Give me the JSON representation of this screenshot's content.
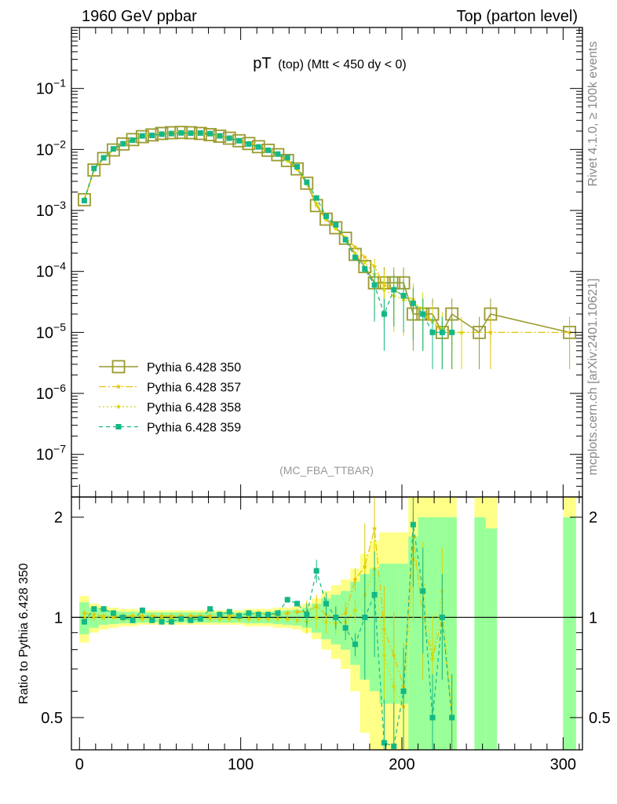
{
  "header": {
    "left": "1960 GeV ppbar",
    "right": "Top (parton level)"
  },
  "side_labels": {
    "rivet": "Rivet 4.1.0, ≥ 100k events",
    "mcplots": "mcplots.cern.ch [arXiv:2401.10621]"
  },
  "chart_data": [
    {
      "type": "line",
      "panel": "main",
      "title": "pT (top) (Mtt < 450 dy < 0)",
      "title_main": "pT",
      "title_sub": "(top) (Mtt < 450 dy < 0)",
      "watermark": "(MC_FBA_TTBAR)",
      "y_scale": "log",
      "ylim": [
        2e-08,
        1
      ],
      "xlim": [
        -5,
        312
      ],
      "y_tick_labels": [
        {
          "value": 1e-07,
          "base": "10",
          "exp": "−7"
        },
        {
          "value": 1e-06,
          "base": "10",
          "exp": "−6"
        },
        {
          "value": 1e-05,
          "base": "10",
          "exp": "−5"
        },
        {
          "value": 0.0001,
          "base": "10",
          "exp": "−4"
        },
        {
          "value": 0.001,
          "base": "10",
          "exp": "−3"
        },
        {
          "value": 0.01,
          "base": "10",
          "exp": "−2"
        },
        {
          "value": 0.1,
          "base": "10",
          "exp": "−1"
        }
      ],
      "legend_position": "lower-left",
      "series": [
        {
          "name": "Pythia 6.428 350",
          "color": "#9a9a2e",
          "style": "solid-open-square",
          "x": [
            3,
            9,
            15,
            21,
            27,
            33,
            39,
            45,
            51,
            57,
            63,
            69,
            75,
            81,
            87,
            93,
            99,
            105,
            111,
            117,
            123,
            129,
            135,
            141,
            147,
            153,
            159,
            165,
            171,
            177,
            183,
            189,
            195,
            201,
            207,
            213,
            219,
            225,
            231,
            248,
            255,
            304
          ],
          "y": [
            0.0015,
            0.0046,
            0.0071,
            0.0098,
            0.0123,
            0.0145,
            0.0162,
            0.0173,
            0.0183,
            0.0188,
            0.019,
            0.0188,
            0.0183,
            0.0175,
            0.0165,
            0.0153,
            0.0139,
            0.0125,
            0.0111,
            0.0097,
            0.0082,
            0.0066,
            0.0048,
            0.0028,
            0.0012,
            0.00072,
            0.00052,
            0.00035,
            0.00019,
            0.00012,
            6.5e-05,
            6.5e-05,
            6.5e-05,
            6.5e-05,
            2e-05,
            2e-05,
            2e-05,
            1e-05,
            2e-05,
            1e-05,
            2e-05,
            1e-05
          ]
        },
        {
          "name": "Pythia 6.428 357",
          "color": "#e6c200",
          "style": "dash-dot-star",
          "x": [
            3,
            9,
            15,
            21,
            27,
            33,
            39,
            45,
            51,
            57,
            63,
            69,
            75,
            81,
            87,
            93,
            99,
            105,
            111,
            117,
            123,
            129,
            135,
            141,
            147,
            153,
            159,
            165,
            171,
            177,
            183,
            189,
            195,
            201,
            207,
            213,
            219,
            225,
            231,
            255,
            304
          ],
          "y": [
            0.00155,
            0.0047,
            0.0072,
            0.0099,
            0.0124,
            0.0146,
            0.0163,
            0.0175,
            0.0185,
            0.019,
            0.0192,
            0.019,
            0.0185,
            0.0177,
            0.0167,
            0.0155,
            0.0142,
            0.0128,
            0.0114,
            0.0099,
            0.0084,
            0.0068,
            0.005,
            0.0029,
            0.0013,
            0.00073,
            0.00052,
            0.00036,
            0.00025,
            0.00017,
            0.00012,
            6e-05,
            5e-05,
            4e-05,
            3.5e-05,
            2e-05,
            1.5e-05,
            1e-05,
            1e-05,
            1e-05,
            1e-05
          ]
        },
        {
          "name": "Pythia 6.428 358",
          "color": "#d8d800",
          "style": "dotted-star",
          "x": [
            3,
            9,
            15,
            21,
            27,
            33,
            39,
            45,
            51,
            57,
            63,
            69,
            75,
            81,
            87,
            93,
            99,
            105,
            111,
            117,
            123,
            129,
            135,
            141,
            147,
            153,
            159,
            165,
            171,
            177,
            183,
            189,
            195,
            201,
            207,
            213,
            219,
            225,
            231,
            237
          ],
          "y": [
            0.0015,
            0.0046,
            0.0071,
            0.0098,
            0.0122,
            0.0144,
            0.0161,
            0.0172,
            0.0182,
            0.0187,
            0.0189,
            0.0187,
            0.0182,
            0.0174,
            0.0164,
            0.0152,
            0.0138,
            0.0124,
            0.011,
            0.0096,
            0.0081,
            0.0065,
            0.0047,
            0.0027,
            0.0012,
            0.0007,
            0.0005,
            0.00034,
            0.0002,
            0.00014,
            9e-05,
            5e-05,
            4e-05,
            3.5e-05,
            3e-05,
            2.5e-05,
            1.5e-05,
            1.2e-05,
            1e-05,
            1e-05
          ]
        },
        {
          "name": "Pythia 6.428 359",
          "color": "#13b886",
          "style": "dashed-filled-square",
          "x": [
            3,
            9,
            15,
            21,
            27,
            33,
            39,
            45,
            51,
            57,
            63,
            69,
            75,
            81,
            87,
            93,
            99,
            105,
            111,
            117,
            123,
            129,
            135,
            141,
            147,
            153,
            159,
            165,
            171,
            177,
            183,
            189,
            195,
            201,
            207,
            213,
            219,
            225,
            231
          ],
          "y": [
            0.00145,
            0.0049,
            0.0073,
            0.0102,
            0.0124,
            0.0142,
            0.0167,
            0.017,
            0.0178,
            0.0182,
            0.0187,
            0.0185,
            0.0186,
            0.0182,
            0.0167,
            0.0153,
            0.0139,
            0.0123,
            0.011,
            0.0097,
            0.0084,
            0.0073,
            0.0052,
            0.0029,
            0.0016,
            0.0008,
            0.00058,
            0.00033,
            0.00017,
            0.00011,
            6e-05,
            2e-05,
            5e-05,
            4e-05,
            3e-05,
            2e-05,
            1e-05,
            1e-05,
            1e-05
          ]
        }
      ]
    },
    {
      "type": "line",
      "panel": "ratio",
      "ylabel": "Ratio to Pythia 6.428 350",
      "xlabel": "",
      "xlim": [
        -5,
        312
      ],
      "ylim": [
        0.4,
        2.3
      ],
      "y_scale": "log",
      "x_ticks": [
        0,
        100,
        200,
        300
      ],
      "x_tick_labels": [
        "0",
        "100",
        "200",
        "300"
      ],
      "y_ticks": [
        0.5,
        1,
        2
      ],
      "y_tick_labels": [
        "0.5",
        "1",
        "2"
      ],
      "reference_line": 1,
      "band_edges": [
        0,
        6,
        12,
        18,
        24,
        30,
        36,
        42,
        48,
        54,
        60,
        66,
        72,
        78,
        84,
        90,
        96,
        102,
        108,
        114,
        120,
        126,
        132,
        138,
        144,
        150,
        156,
        162,
        168,
        174,
        180,
        186,
        192,
        198,
        204,
        210,
        216,
        222,
        228,
        234,
        245,
        252,
        259,
        300,
        308
      ],
      "band_outer_rel": [
        0.16,
        0.1,
        0.08,
        0.07,
        0.06,
        0.06,
        0.05,
        0.05,
        0.05,
        0.05,
        0.05,
        0.05,
        0.05,
        0.05,
        0.05,
        0.05,
        0.05,
        0.06,
        0.06,
        0.06,
        0.07,
        0.07,
        0.08,
        0.1,
        0.14,
        0.2,
        0.25,
        0.3,
        0.4,
        0.55,
        0.7,
        0.8,
        0.8,
        0.8,
        1.3,
        1.5,
        1.5,
        1.5,
        1.5,
        null,
        1.5,
        1.3,
        null,
        1.5
      ],
      "band_inner_rel": [
        0.11,
        0.07,
        0.05,
        0.045,
        0.04,
        0.04,
        0.035,
        0.035,
        0.035,
        0.035,
        0.035,
        0.035,
        0.035,
        0.035,
        0.035,
        0.035,
        0.035,
        0.04,
        0.04,
        0.04,
        0.045,
        0.05,
        0.055,
        0.07,
        0.1,
        0.14,
        0.17,
        0.2,
        0.28,
        0.35,
        0.4,
        0.45,
        0.45,
        0.45,
        0.75,
        1.0,
        1.0,
        1.0,
        1.0,
        null,
        1.0,
        0.85,
        null,
        1.0
      ],
      "series": [
        {
          "name": "Pythia 6.428 357",
          "color": "#e6c200",
          "x": [
            3,
            9,
            15,
            21,
            27,
            33,
            39,
            45,
            51,
            57,
            63,
            69,
            75,
            81,
            87,
            93,
            99,
            105,
            111,
            117,
            123,
            129,
            135,
            141,
            147,
            153,
            159,
            165,
            171,
            177,
            183,
            189,
            195,
            201,
            207,
            213,
            219,
            225,
            231
          ],
          "y": [
            1.03,
            1.02,
            1.01,
            1.01,
            1.01,
            1.01,
            1.01,
            1.01,
            1.01,
            1.01,
            1.01,
            1.01,
            1.01,
            1.01,
            1.01,
            1.01,
            1.02,
            1.02,
            1.03,
            1.02,
            1.02,
            1.03,
            1.04,
            1.04,
            1.08,
            1.02,
            1.0,
            1.03,
            1.3,
            1.42,
            1.85,
            0.92,
            0.77,
            0.62,
            1.75,
            1.0,
            0.75,
            1.0,
            0.5
          ]
        },
        {
          "name": "Pythia 6.428 358",
          "color": "#d8d800",
          "x": [
            3,
            9,
            15,
            21,
            27,
            33,
            39,
            45,
            51,
            57,
            63,
            69,
            75,
            81,
            87,
            93,
            99,
            105,
            111,
            117,
            123,
            129,
            135,
            141,
            147,
            153,
            159,
            165,
            171,
            177,
            183,
            189,
            195,
            201,
            207,
            213,
            219,
            225,
            231
          ],
          "y": [
            1.0,
            1.0,
            1.0,
            1.0,
            0.99,
            0.99,
            0.99,
            0.99,
            0.99,
            0.99,
            0.99,
            0.99,
            0.99,
            0.99,
            0.99,
            0.99,
            0.99,
            0.99,
            0.99,
            0.99,
            0.99,
            0.99,
            0.98,
            0.97,
            1.0,
            0.97,
            0.96,
            0.97,
            1.05,
            1.17,
            1.4,
            0.77,
            0.62,
            0.54,
            1.5,
            1.25,
            0.75,
            1.2,
            0.5
          ]
        },
        {
          "name": "Pythia 6.428 359",
          "color": "#13b886",
          "x": [
            3,
            9,
            15,
            21,
            27,
            33,
            39,
            45,
            51,
            57,
            63,
            69,
            75,
            81,
            87,
            93,
            99,
            105,
            111,
            117,
            123,
            129,
            135,
            141,
            147,
            153,
            159,
            165,
            171,
            177,
            183,
            189,
            195,
            201,
            207,
            213,
            219,
            225,
            231
          ],
          "y": [
            0.97,
            1.06,
            1.06,
            1.03,
            1.0,
            0.98,
            1.05,
            0.98,
            0.97,
            0.97,
            0.99,
            0.98,
            0.99,
            1.06,
            1.02,
            1.04,
            1.01,
            1.03,
            1.02,
            1.02,
            1.03,
            1.13,
            1.1,
            1.02,
            1.38,
            1.1,
            1.0,
            0.93,
            0.83,
            1.0,
            1.17,
            0.42,
            0.41,
            0.6,
            1.9,
            1.2,
            0.5,
            1.0,
            0.5
          ]
        }
      ]
    }
  ]
}
